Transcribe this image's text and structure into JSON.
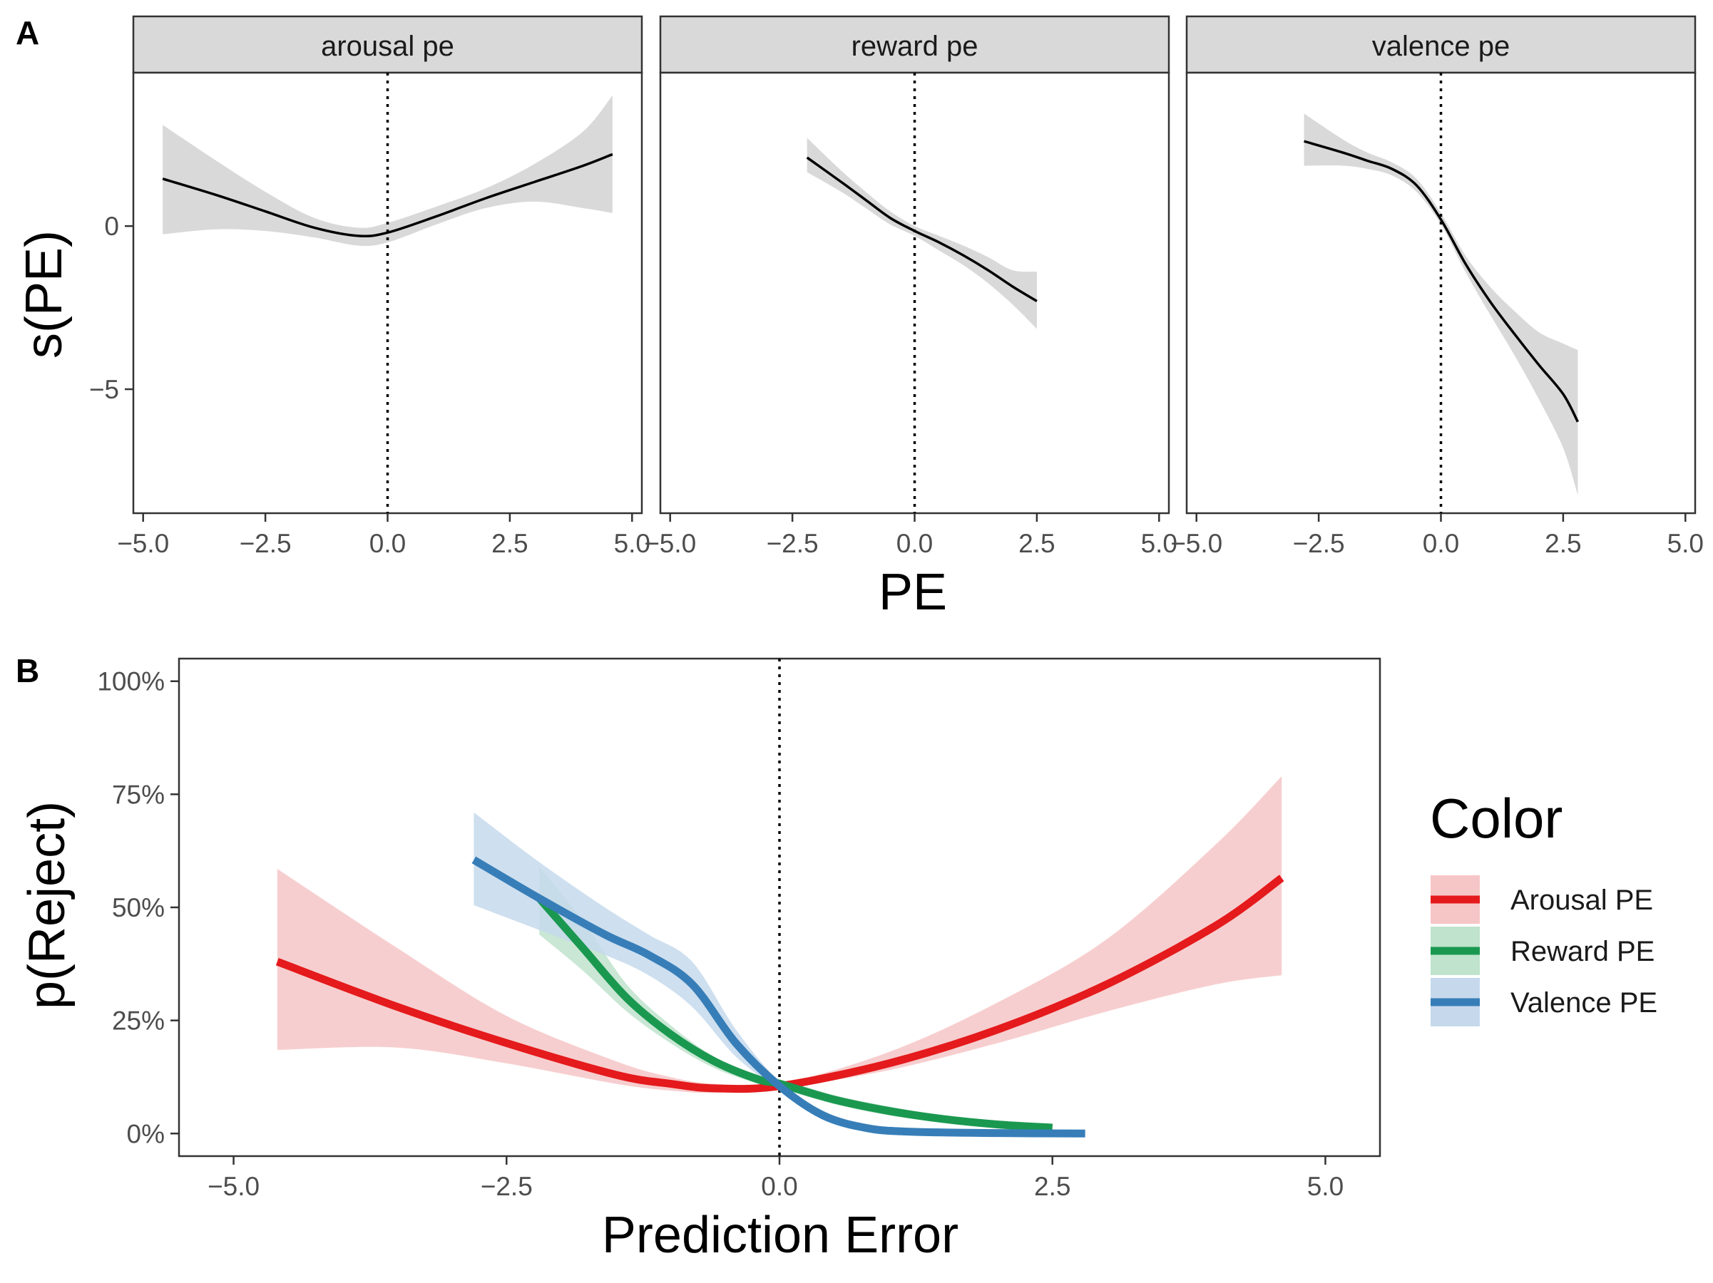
{
  "figure": {
    "panel_tags": [
      "A",
      "B"
    ]
  },
  "chart_data": [
    {
      "type": "line",
      "panel": "A",
      "facets": [
        "arousal pe",
        "reward pe",
        "valence pe"
      ],
      "xlabel": "PE",
      "ylabel": "s(PE)",
      "xlim": [
        -5.2,
        5.2
      ],
      "ylim": [
        -8.8,
        4.7
      ],
      "x_ticks": [
        -5,
        -2.5,
        0,
        2.5,
        5
      ],
      "x_tick_labels": [
        "−5.0",
        "−2.5",
        "0.0",
        "2.5",
        "5.0"
      ],
      "y_ticks": [
        0,
        -5
      ],
      "y_tick_labels": [
        "0",
        "−5"
      ],
      "reference_line": {
        "x": 0,
        "style": "dotted"
      },
      "line_color": "#000000",
      "ribbon_color": "#d9d9d9",
      "strip_fill": "#d9d9d9",
      "grid": false,
      "series": [
        {
          "facet": "arousal pe",
          "x": [
            -4.6,
            -3.5,
            -2.5,
            -1.5,
            -0.6,
            0,
            1,
            2,
            3,
            4,
            4.6
          ],
          "y": [
            1.45,
            0.95,
            0.45,
            -0.05,
            -0.3,
            -0.2,
            0.3,
            0.85,
            1.35,
            1.85,
            2.2
          ],
          "lower": [
            -0.25,
            -0.1,
            -0.15,
            -0.35,
            -0.6,
            -0.5,
            0.05,
            0.55,
            0.75,
            0.55,
            0.4
          ],
          "upper": [
            3.1,
            2.0,
            1.05,
            0.25,
            -0.05,
            0.1,
            0.6,
            1.15,
            1.9,
            2.9,
            4.0
          ]
        },
        {
          "facet": "reward pe",
          "x": [
            -2.2,
            -1.5,
            -1.0,
            -0.5,
            0,
            0.5,
            1.0,
            1.5,
            2.0,
            2.5
          ],
          "y": [
            2.1,
            1.35,
            0.8,
            0.25,
            -0.15,
            -0.5,
            -0.9,
            -1.35,
            -1.85,
            -2.3
          ],
          "lower": [
            1.65,
            1.05,
            0.55,
            0.05,
            -0.3,
            -0.75,
            -1.2,
            -1.75,
            -2.4,
            -3.15
          ],
          "upper": [
            2.7,
            1.7,
            1.05,
            0.45,
            0.0,
            -0.3,
            -0.6,
            -0.95,
            -1.35,
            -1.4
          ]
        },
        {
          "facet": "valence pe",
          "x": [
            -2.8,
            -2.0,
            -1.5,
            -1.0,
            -0.5,
            0,
            0.5,
            1.0,
            1.5,
            2.0,
            2.5,
            2.8
          ],
          "y": [
            2.6,
            2.25,
            2.0,
            1.75,
            1.25,
            0.2,
            -1.15,
            -2.3,
            -3.3,
            -4.25,
            -5.15,
            -6.0
          ],
          "lower": [
            1.85,
            1.85,
            1.75,
            1.55,
            1.05,
            0.05,
            -1.4,
            -2.7,
            -3.95,
            -5.3,
            -6.8,
            -8.25
          ],
          "upper": [
            3.45,
            2.65,
            2.25,
            1.95,
            1.45,
            0.4,
            -0.9,
            -1.85,
            -2.6,
            -3.25,
            -3.6,
            -3.8
          ]
        }
      ]
    },
    {
      "type": "line",
      "panel": "B",
      "xlabel": "Prediction Error",
      "ylabel": "p(Reject)",
      "xlim": [
        -5.5,
        5.5
      ],
      "ylim": [
        -0.05,
        1.05
      ],
      "x_ticks": [
        -5,
        -2.5,
        0,
        2.5,
        5
      ],
      "x_tick_labels": [
        "−5.0",
        "−2.5",
        "0.0",
        "2.5",
        "5.0"
      ],
      "y_ticks": [
        0,
        0.25,
        0.5,
        0.75,
        1
      ],
      "y_tick_labels": [
        "0%",
        "25%",
        "50%",
        "75%",
        "100%"
      ],
      "reference_line": {
        "x": 0,
        "style": "dotted"
      },
      "grid": false,
      "legend": {
        "title": "Color",
        "position": "right"
      },
      "series": [
        {
          "name": "Arousal PE",
          "color": "#e41a1c",
          "ribbon_color": "#f6c6c7",
          "x": [
            -4.6,
            -3.5,
            -2.5,
            -1.5,
            -1.0,
            -0.6,
            0,
            1.0,
            2.0,
            3.0,
            4.0,
            4.6
          ],
          "y": [
            0.38,
            0.28,
            0.2,
            0.13,
            0.11,
            0.1,
            0.105,
            0.155,
            0.23,
            0.33,
            0.46,
            0.565
          ],
          "lower": [
            0.185,
            0.19,
            0.155,
            0.11,
            0.095,
            0.09,
            0.1,
            0.14,
            0.2,
            0.27,
            0.33,
            0.35
          ],
          "upper": [
            0.585,
            0.41,
            0.26,
            0.16,
            0.125,
            0.11,
            0.11,
            0.18,
            0.29,
            0.43,
            0.64,
            0.79
          ]
        },
        {
          "name": "Reward PE",
          "color": "#1a9850",
          "ribbon_color": "#bfe3cc",
          "x": [
            -2.2,
            -1.8,
            -1.4,
            -1.0,
            -0.6,
            -0.2,
            0,
            0.5,
            1.0,
            1.5,
            2.0,
            2.5
          ],
          "y": [
            0.52,
            0.41,
            0.3,
            0.22,
            0.16,
            0.12,
            0.11,
            0.075,
            0.05,
            0.032,
            0.02,
            0.013
          ],
          "lower": [
            0.44,
            0.36,
            0.27,
            0.2,
            0.145,
            0.11,
            0.1,
            0.065,
            0.04,
            0.025,
            0.015,
            0.008
          ],
          "upper": [
            0.59,
            0.47,
            0.33,
            0.24,
            0.17,
            0.13,
            0.12,
            0.085,
            0.06,
            0.04,
            0.028,
            0.02
          ]
        },
        {
          "name": "Valence PE",
          "color": "#377eb8",
          "ribbon_color": "#c6d9ec",
          "x": [
            -2.8,
            -2.2,
            -1.6,
            -1.2,
            -0.8,
            -0.4,
            0,
            0.4,
            0.8,
            1.2,
            2.0,
            2.8
          ],
          "y": [
            0.605,
            0.52,
            0.44,
            0.395,
            0.33,
            0.2,
            0.105,
            0.04,
            0.012,
            0.004,
            0.001,
            0.0
          ],
          "lower": [
            0.505,
            0.45,
            0.395,
            0.35,
            0.28,
            0.17,
            0.095,
            0.03,
            0.008,
            0.002,
            0.0,
            0.0
          ],
          "upper": [
            0.71,
            0.6,
            0.5,
            0.44,
            0.38,
            0.23,
            0.115,
            0.05,
            0.02,
            0.008,
            0.003,
            0.001
          ]
        }
      ]
    }
  ]
}
